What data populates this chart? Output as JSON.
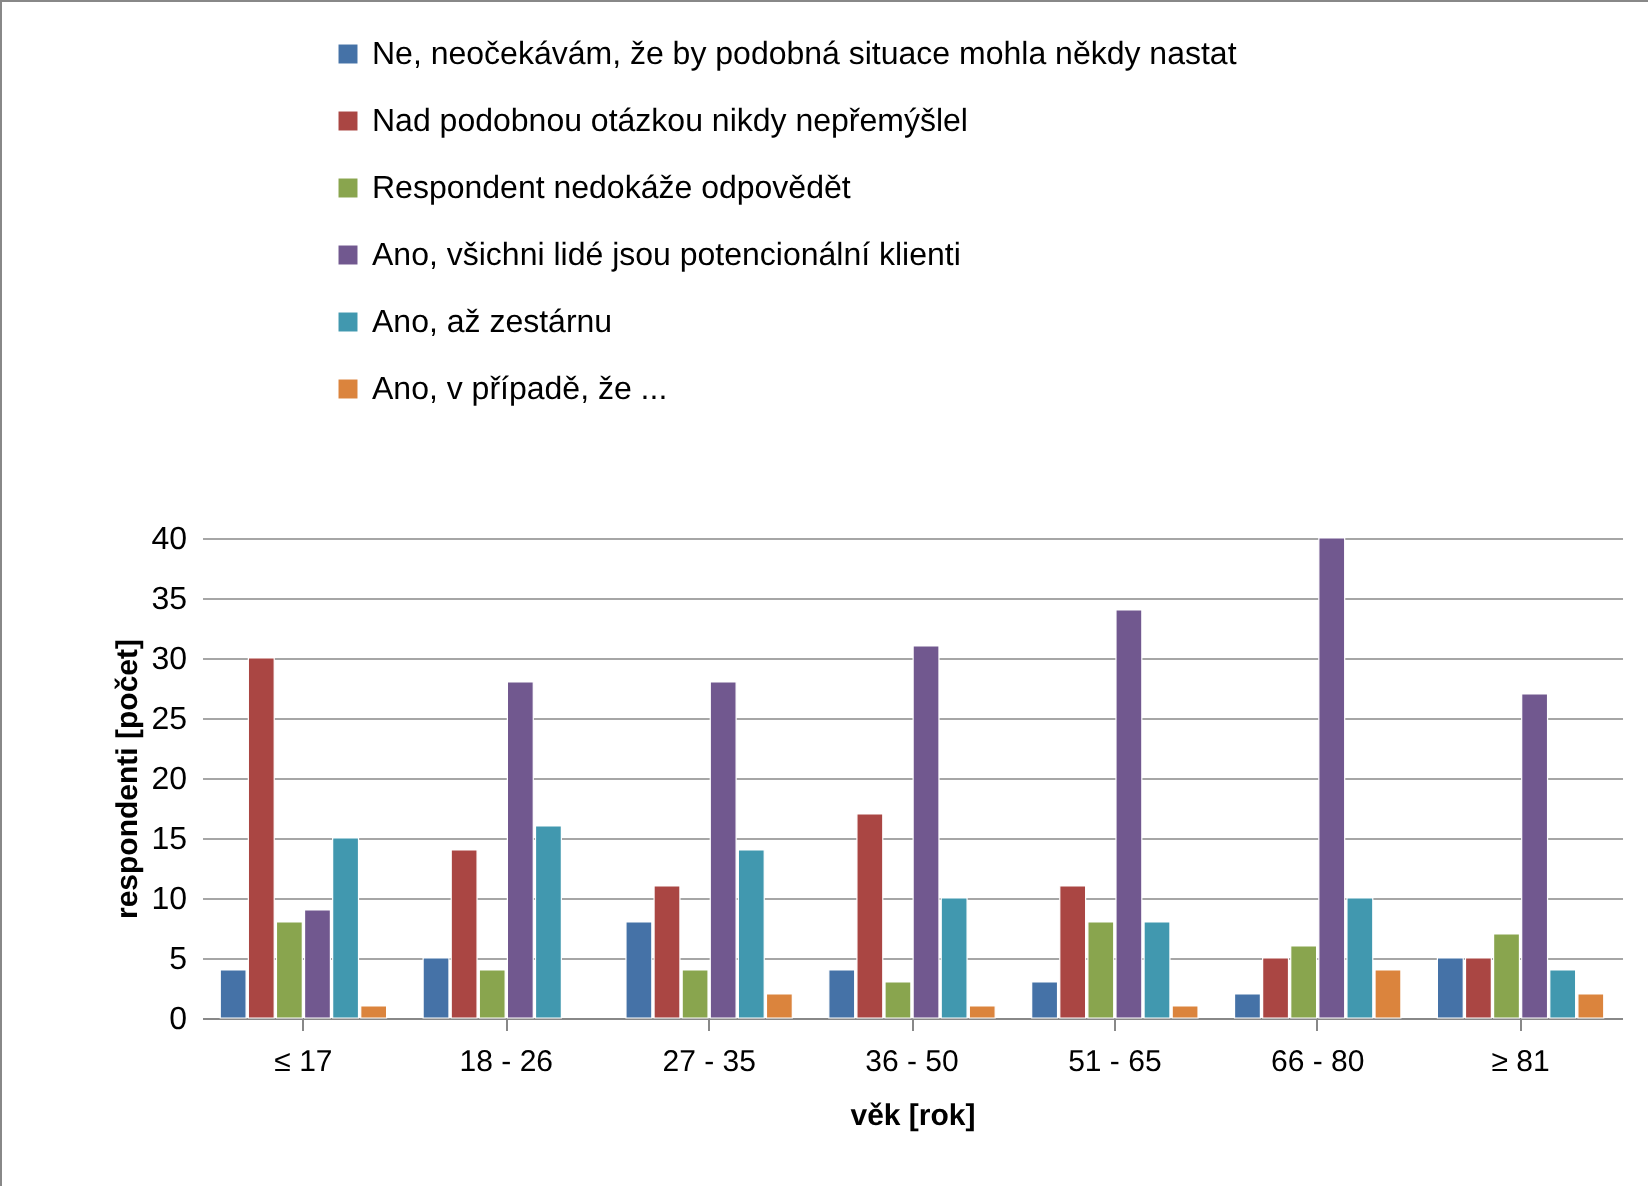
{
  "chart_data": {
    "type": "bar",
    "xlabel": "věk [rok]",
    "ylabel": "respondenti [počet]",
    "categories": [
      "≤ 17",
      "18 - 26",
      "27 - 35",
      "36 - 50",
      "51 - 65",
      "66 - 80",
      "≥ 81"
    ],
    "series": [
      {
        "name": "Ne, neočekávám, že by podobná situace mohla někdy nastat",
        "color": "#4572a7",
        "values": [
          4,
          5,
          8,
          4,
          3,
          2,
          5
        ]
      },
      {
        "name": "Nad podobnou otázkou nikdy nepřemýšlel",
        "color": "#aa4643",
        "values": [
          30,
          14,
          11,
          17,
          11,
          5,
          5
        ]
      },
      {
        "name": "Respondent nedokáže odpovědět",
        "color": "#89a54e",
        "values": [
          8,
          4,
          4,
          3,
          8,
          6,
          7
        ]
      },
      {
        "name": "Ano, všichni lidé jsou potencionální klienti",
        "color": "#71588f",
        "values": [
          9,
          28,
          28,
          31,
          34,
          40,
          27
        ]
      },
      {
        "name": "Ano, až zestárnu",
        "color": "#4198af",
        "values": [
          15,
          16,
          14,
          10,
          8,
          10,
          4
        ]
      },
      {
        "name": "Ano, v případě, že ...",
        "color": "#db843d",
        "values": [
          1,
          null,
          2,
          1,
          1,
          4,
          2
        ]
      }
    ],
    "ylim": [
      0,
      40
    ],
    "yticks": [
      0,
      5,
      10,
      15,
      20,
      25,
      30,
      35,
      40
    ],
    "grid": "y",
    "legend": "top"
  }
}
